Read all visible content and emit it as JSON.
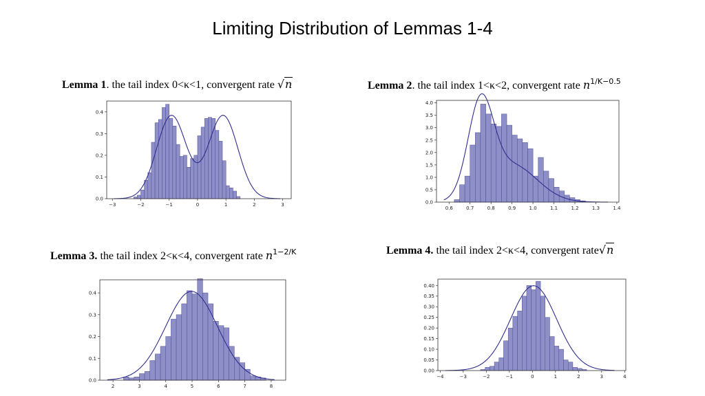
{
  "title": "Limiting Distribution of Lemmas 1-4",
  "captions": [
    {
      "bold": "Lemma 1",
      "text": ". the tail index 0<κ<1, convergent rate ",
      "rate_sqrt": "n"
    },
    {
      "bold": "Lemma 2",
      "text": ". the tail index 1<κ<2, convergent rate ",
      "rate_base": "n",
      "rate_exp": "1/Κ−0.5"
    },
    {
      "bold": "Lemma 3.",
      "text": " the tail index 2<κ<4, convergent rate ",
      "rate_base": "n",
      "rate_exp": "1−2/Κ"
    },
    {
      "bold": "Lemma 4.",
      "text": " the tail index 2<κ<4, convergent rate",
      "rate_sqrt": "n"
    }
  ],
  "colors": {
    "bar_fill": "#8f8fc8",
    "bar_edge": "#4b4b99",
    "kde_line": "#2e2e8e",
    "axes": "#333333"
  },
  "chart_data": [
    {
      "type": "bar",
      "subtype": "histogram_with_kde",
      "xlim": [
        -3.2,
        3.3
      ],
      "ylim": [
        0,
        0.45
      ],
      "xticks": [
        -3,
        -2,
        -1,
        0,
        1,
        2,
        3
      ],
      "yticks": [
        0.0,
        0.1,
        0.2,
        0.3,
        0.4
      ],
      "ytick_decimals": 1,
      "bin_start": -2.25,
      "bin_width": 0.125,
      "values": [
        0.008,
        0.016,
        0.04,
        0.085,
        0.12,
        0.26,
        0.35,
        0.365,
        0.42,
        0.435,
        0.37,
        0.335,
        0.25,
        0.195,
        0.2,
        0.145,
        0.185,
        0.2,
        0.29,
        0.33,
        0.37,
        0.375,
        0.37,
        0.315,
        0.265,
        0.175,
        0.06,
        0.05,
        0.035,
        0.01,
        0.0,
        0.0,
        0.0,
        0.0
      ],
      "kde": {
        "components": [
          {
            "w": 0.5,
            "mu": -0.92,
            "sd": 0.52
          },
          {
            "w": 0.5,
            "mu": 0.9,
            "sd": 0.52
          }
        ]
      }
    },
    {
      "type": "bar",
      "subtype": "histogram_with_kde",
      "xlim": [
        0.54,
        1.41
      ],
      "ylim": [
        0,
        4.1
      ],
      "xticks": [
        0.6,
        0.7,
        0.8,
        0.9,
        1.0,
        1.1,
        1.2,
        1.3,
        1.4
      ],
      "yticks": [
        0.0,
        0.5,
        1.0,
        1.5,
        2.0,
        2.5,
        3.0,
        3.5,
        4.0
      ],
      "ytick_decimals": 1,
      "bin_start": 0.625,
      "bin_width": 0.025,
      "values": [
        0.1,
        0.7,
        1.05,
        2.3,
        2.8,
        3.95,
        3.55,
        3.15,
        3.05,
        3.55,
        3.1,
        2.7,
        2.55,
        2.4,
        2.15,
        1.05,
        1.8,
        1.25,
        0.95,
        0.6,
        0.45,
        0.28,
        0.18,
        0.1,
        0.05,
        0.0
      ],
      "kde": {
        "components": [
          {
            "w": 0.55,
            "mu": 0.75,
            "sd": 0.06
          },
          {
            "w": 0.45,
            "mu": 0.9,
            "sd": 0.12
          }
        ]
      }
    },
    {
      "type": "bar",
      "subtype": "histogram_with_kde",
      "xlim": [
        1.5,
        8.55
      ],
      "ylim": [
        0,
        0.46
      ],
      "xticks": [
        2,
        3,
        4,
        5,
        6,
        7,
        8
      ],
      "yticks": [
        0.0,
        0.1,
        0.2,
        0.3,
        0.4
      ],
      "ytick_decimals": 1,
      "bin_start": 2.4,
      "bin_width": 0.2,
      "values": [
        0.015,
        0.01,
        0.015,
        0.03,
        0.04,
        0.09,
        0.12,
        0.155,
        0.2,
        0.28,
        0.3,
        0.35,
        0.41,
        0.395,
        0.465,
        0.4,
        0.35,
        0.27,
        0.25,
        0.24,
        0.155,
        0.105,
        0.08,
        0.05,
        0.02,
        0.015,
        0.01,
        0.0
      ],
      "kde": {
        "components": [
          {
            "w": 1.0,
            "mu": 4.98,
            "sd": 0.98
          }
        ]
      }
    },
    {
      "type": "bar",
      "subtype": "histogram_with_kde",
      "xlim": [
        -4.1,
        4.05
      ],
      "ylim": [
        0,
        0.43
      ],
      "xticks": [
        -4,
        -3,
        -2,
        -1,
        0,
        1,
        2,
        3,
        4
      ],
      "yticks": [
        0.0,
        0.05,
        0.1,
        0.15,
        0.2,
        0.25,
        0.3,
        0.35,
        0.4
      ],
      "ytick_decimals": 2,
      "bin_start": -2.25,
      "bin_width": 0.2,
      "values": [
        0.005,
        0.015,
        0.02,
        0.04,
        0.06,
        0.14,
        0.2,
        0.255,
        0.28,
        0.35,
        0.4,
        0.38,
        0.42,
        0.35,
        0.25,
        0.16,
        0.115,
        0.1,
        0.05,
        0.04,
        0.015,
        0.01,
        0.005,
        0.0
      ],
      "kde": {
        "components": [
          {
            "w": 1.0,
            "mu": 0.05,
            "sd": 1.0
          }
        ]
      }
    }
  ]
}
